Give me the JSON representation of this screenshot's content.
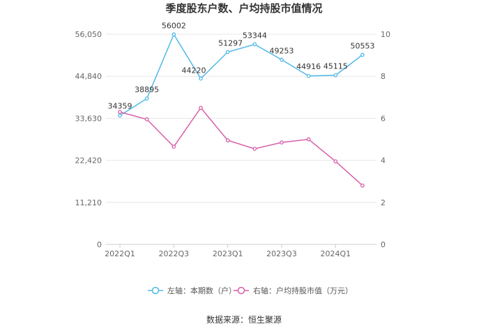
{
  "chart_data": {
    "type": "line",
    "title": "季度股东户数、户均持股市值情况",
    "categories": [
      "2022Q1",
      "2022Q2",
      "2022Q3",
      "2022Q4",
      "2023Q1",
      "2023Q2",
      "2023Q3",
      "2023Q4",
      "2024Q1",
      "2024Q2"
    ],
    "x_tick_labels": [
      "2022Q1",
      "2022Q3",
      "2023Q1",
      "2023Q3",
      "2024Q1"
    ],
    "y_left": {
      "min": 0,
      "max": 56050,
      "ticks": [
        0,
        11210,
        22420,
        33630,
        44840,
        56050
      ],
      "tick_labels": [
        "0",
        "11,210",
        "22,420",
        "33,630",
        "44,840",
        "56,050"
      ]
    },
    "y_right": {
      "min": 0,
      "max": 10,
      "ticks": [
        0,
        2,
        4,
        6,
        8,
        10
      ],
      "tick_labels": [
        "0",
        "2",
        "4",
        "6",
        "8",
        "10"
      ]
    },
    "grid": true,
    "legend_position": "bottom",
    "series": [
      {
        "name": "左轴：本期数（户）",
        "axis": "left",
        "color": "#4fb8e8",
        "values": [
          34359,
          38895,
          56002,
          44220,
          51297,
          53344,
          49253,
          44916,
          45115,
          50553
        ],
        "labels": [
          "34359",
          "38895",
          "56002",
          "44220",
          "51297",
          "53344",
          "49253",
          "44916",
          "45115",
          "50553"
        ]
      },
      {
        "name": "右轴：户均持股市值（万元）",
        "axis": "right",
        "color": "#d65fa8",
        "values": [
          6.3,
          5.95,
          4.65,
          6.5,
          4.95,
          4.55,
          4.85,
          5.0,
          3.95,
          2.8
        ]
      }
    ]
  },
  "footer": {
    "source": "数据来源：恒生聚源"
  }
}
